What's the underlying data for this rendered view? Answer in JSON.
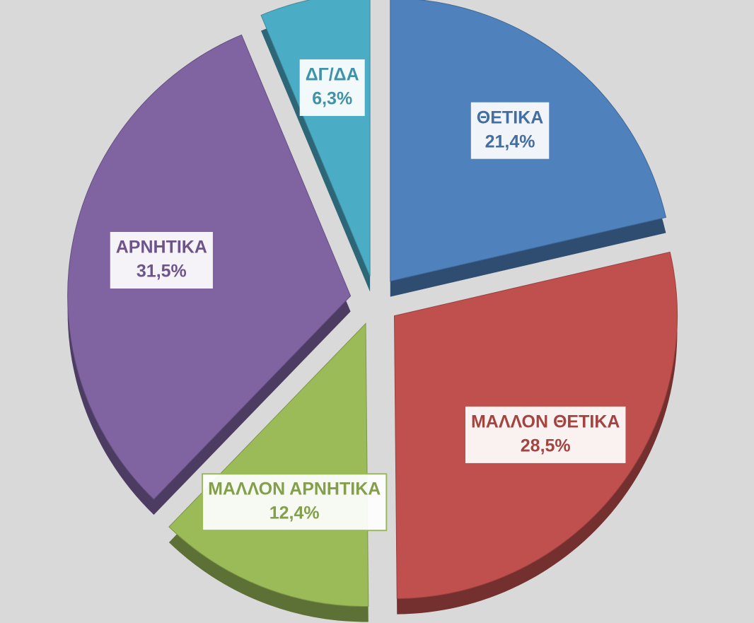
{
  "chart_data": {
    "type": "pie",
    "categories": [
      "ΘΕΤΙΚΑ",
      "ΜΑΛΛΟΝ ΘΕΤΙΚΑ",
      "ΜΑΛΛΟΝ ΑΡΝΗΤΙΚΑ",
      "ΑΡΝΗΤΙΚΑ",
      "ΔΓ/ΔΑ"
    ],
    "values": [
      21.4,
      28.5,
      12.4,
      31.5,
      6.3
    ],
    "value_labels": [
      "21,4%",
      "28,5%",
      "12,4%",
      "31,5%",
      "6,3%"
    ],
    "colors": [
      "#4f81bd",
      "#c0504d",
      "#9bbb59",
      "#8064a2",
      "#4bacc6"
    ]
  }
}
